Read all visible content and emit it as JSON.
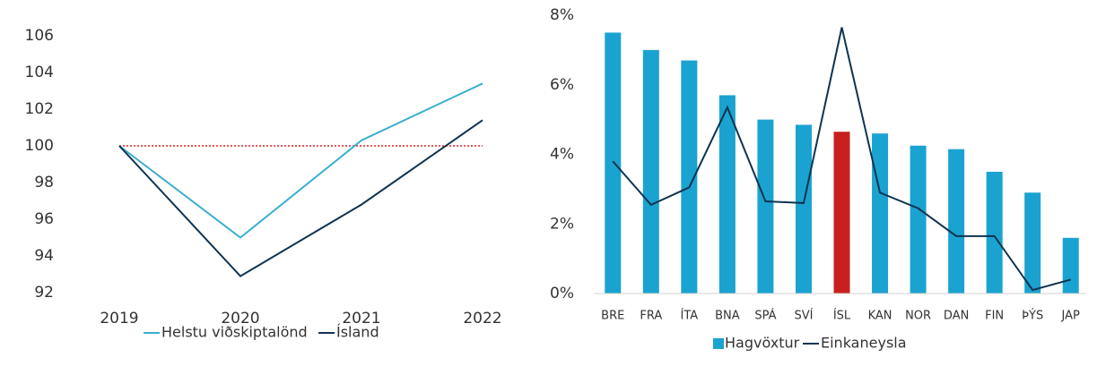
{
  "chart_data": [
    {
      "type": "line",
      "categories": [
        "2019",
        "2020",
        "2021",
        "2022"
      ],
      "series": [
        {
          "name": "Helstu viðskiptalönd",
          "color": "#3aaed0",
          "values": [
            100,
            95,
            100.3,
            103.4
          ]
        },
        {
          "name": "Ísland",
          "color": "#0f3350",
          "values": [
            100,
            92.9,
            96.8,
            101.4
          ]
        }
      ],
      "reference_line": {
        "value": 100,
        "color": "#e02020"
      },
      "ylim": [
        92,
        106
      ],
      "yticks": [
        92,
        94,
        96,
        98,
        100,
        102,
        104,
        106
      ]
    },
    {
      "type": "bar",
      "categories": [
        "BRE",
        "FRA",
        "ÍTA",
        "BNA",
        "SPÁ",
        "SVÍ",
        "ÍSL",
        "KAN",
        "NOR",
        "DAN",
        "FIN",
        "ÞÝS",
        "JAP"
      ],
      "series": [
        {
          "name": "Hagvöxtur",
          "type": "bar",
          "color": "#1aa3d0",
          "colors": [
            "#1aa3d0",
            "#1aa3d0",
            "#1aa3d0",
            "#1aa3d0",
            "#1aa3d0",
            "#1aa3d0",
            "#c8201f",
            "#1aa3d0",
            "#1aa3d0",
            "#1aa3d0",
            "#1aa3d0",
            "#1aa3d0",
            "#1aa3d0"
          ],
          "values": [
            7.5,
            7.0,
            6.7,
            5.7,
            5.0,
            4.85,
            4.65,
            4.6,
            4.25,
            4.15,
            3.5,
            2.9,
            1.6
          ]
        },
        {
          "name": "Einkaneysla",
          "type": "line",
          "color": "#0f3350",
          "values": [
            3.8,
            2.55,
            3.05,
            5.35,
            2.65,
            2.6,
            7.65,
            2.9,
            2.45,
            1.65,
            1.65,
            0.1,
            0.4
          ]
        }
      ],
      "ylim": [
        0,
        8
      ],
      "yticks": [
        {
          "value": 0,
          "label": "0%"
        },
        {
          "value": 2,
          "label": "2%"
        },
        {
          "value": 4,
          "label": "4%"
        },
        {
          "value": 6,
          "label": "6%"
        },
        {
          "value": 8,
          "label": "8%"
        }
      ]
    }
  ]
}
